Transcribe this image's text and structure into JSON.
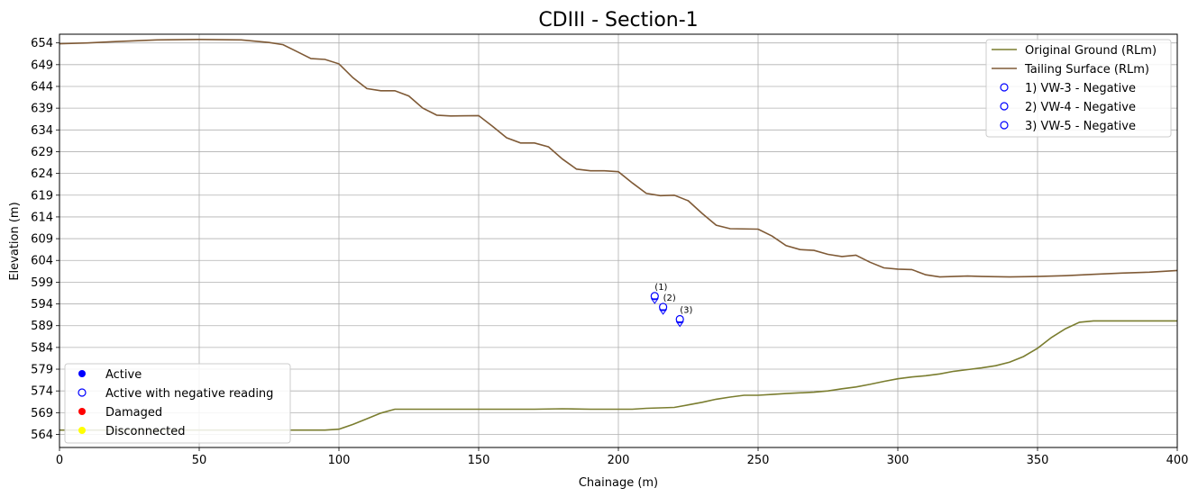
{
  "chart_data": {
    "type": "line",
    "title": "CDIII - Section-1",
    "xlabel": "Chainage (m)",
    "ylabel": "Elevation (m)",
    "xlim": [
      0,
      400
    ],
    "ylim": [
      561,
      656
    ],
    "xticks": [
      0,
      50,
      100,
      150,
      200,
      250,
      300,
      350,
      400
    ],
    "yticks": [
      564,
      569,
      574,
      579,
      584,
      589,
      594,
      599,
      604,
      609,
      614,
      619,
      624,
      629,
      634,
      639,
      644,
      649,
      654
    ],
    "grid": true,
    "series": [
      {
        "name": "Original Ground (RLm)",
        "color": "#7a7d2f",
        "points": [
          [
            0,
            565
          ],
          [
            20,
            565
          ],
          [
            50,
            565
          ],
          [
            80,
            565
          ],
          [
            95,
            565
          ],
          [
            100,
            565.2
          ],
          [
            105,
            566.3
          ],
          [
            110,
            567.6
          ],
          [
            115,
            568.9
          ],
          [
            120,
            569.8
          ],
          [
            130,
            569.8
          ],
          [
            150,
            569.8
          ],
          [
            170,
            569.8
          ],
          [
            180,
            569.9
          ],
          [
            190,
            569.8
          ],
          [
            205,
            569.8
          ],
          [
            210,
            570
          ],
          [
            220,
            570.2
          ],
          [
            225,
            570.8
          ],
          [
            230,
            571.4
          ],
          [
            235,
            572.1
          ],
          [
            240,
            572.6
          ],
          [
            245,
            573
          ],
          [
            250,
            573
          ],
          [
            255,
            573.2
          ],
          [
            260,
            573.4
          ],
          [
            270,
            573.7
          ],
          [
            275,
            574
          ],
          [
            280,
            574.5
          ],
          [
            285,
            574.9
          ],
          [
            290,
            575.5
          ],
          [
            295,
            576.2
          ],
          [
            300,
            576.8
          ],
          [
            305,
            577.2
          ],
          [
            310,
            577.5
          ],
          [
            315,
            577.9
          ],
          [
            320,
            578.5
          ],
          [
            325,
            578.9
          ],
          [
            330,
            579.3
          ],
          [
            335,
            579.8
          ],
          [
            340,
            580.6
          ],
          [
            345,
            581.9
          ],
          [
            350,
            583.8
          ],
          [
            355,
            586.3
          ],
          [
            360,
            588.3
          ],
          [
            365,
            589.8
          ],
          [
            370,
            590.1
          ],
          [
            400,
            590.1
          ]
        ]
      },
      {
        "name": "Tailing Surface (RLm)",
        "color": "#7f5a36",
        "points": [
          [
            0,
            653.8
          ],
          [
            10,
            654
          ],
          [
            20,
            654.3
          ],
          [
            35,
            654.7
          ],
          [
            50,
            654.8
          ],
          [
            65,
            654.7
          ],
          [
            75,
            654.1
          ],
          [
            80,
            653.6
          ],
          [
            85,
            652
          ],
          [
            90,
            650.4
          ],
          [
            95,
            650.2
          ],
          [
            100,
            649.2
          ],
          [
            105,
            646
          ],
          [
            110,
            643.5
          ],
          [
            115,
            643
          ],
          [
            120,
            643
          ],
          [
            125,
            641.8
          ],
          [
            130,
            639
          ],
          [
            135,
            637.4
          ],
          [
            140,
            637.2
          ],
          [
            150,
            637.3
          ],
          [
            155,
            634.8
          ],
          [
            160,
            632.2
          ],
          [
            165,
            631
          ],
          [
            170,
            631
          ],
          [
            175,
            630.1
          ],
          [
            180,
            627.3
          ],
          [
            185,
            625
          ],
          [
            190,
            624.6
          ],
          [
            195,
            624.6
          ],
          [
            200,
            624.4
          ],
          [
            205,
            621.8
          ],
          [
            210,
            619.4
          ],
          [
            215,
            618.9
          ],
          [
            220,
            619
          ],
          [
            225,
            617.7
          ],
          [
            230,
            614.8
          ],
          [
            235,
            612.1
          ],
          [
            240,
            611.3
          ],
          [
            250,
            611.2
          ],
          [
            255,
            609.6
          ],
          [
            260,
            607.4
          ],
          [
            265,
            606.5
          ],
          [
            270,
            606.3
          ],
          [
            275,
            605.4
          ],
          [
            280,
            604.9
          ],
          [
            285,
            605.2
          ],
          [
            290,
            603.6
          ],
          [
            295,
            602.3
          ],
          [
            300,
            602
          ],
          [
            305,
            601.9
          ],
          [
            310,
            600.7
          ],
          [
            315,
            600.2
          ],
          [
            320,
            600.3
          ],
          [
            325,
            600.4
          ],
          [
            330,
            600.3
          ],
          [
            340,
            600.2
          ],
          [
            350,
            600.3
          ],
          [
            360,
            600.5
          ],
          [
            370,
            600.8
          ],
          [
            380,
            601.1
          ],
          [
            390,
            601.3
          ],
          [
            400,
            601.7
          ]
        ]
      }
    ],
    "instruments": [
      {
        "label": "(1)",
        "legend": "1) VW-3 - Negative",
        "x": 213,
        "y": 595.8,
        "status": "Active with negative reading",
        "color": "#0000ff"
      },
      {
        "label": "(2)",
        "legend": "2) VW-4 - Negative",
        "x": 216,
        "y": 593.3,
        "status": "Active with negative reading",
        "color": "#0000ff"
      },
      {
        "label": "(3)",
        "legend": "3) VW-5 - Negative",
        "x": 222,
        "y": 590.5,
        "status": "Active with negative reading",
        "color": "#0000ff"
      }
    ],
    "legend_top_right": "top-right",
    "legend_bottom_left": {
      "placement": "bottom-left",
      "entries": [
        {
          "label": "Active",
          "style": "filled",
          "color": "#0000ff"
        },
        {
          "label": "Active with negative reading",
          "style": "hollow",
          "color": "#0000ff"
        },
        {
          "label": "Damaged",
          "style": "filled",
          "color": "#ff0000"
        },
        {
          "label": "Disconnected",
          "style": "filled",
          "color": "#ffff00"
        }
      ]
    }
  }
}
